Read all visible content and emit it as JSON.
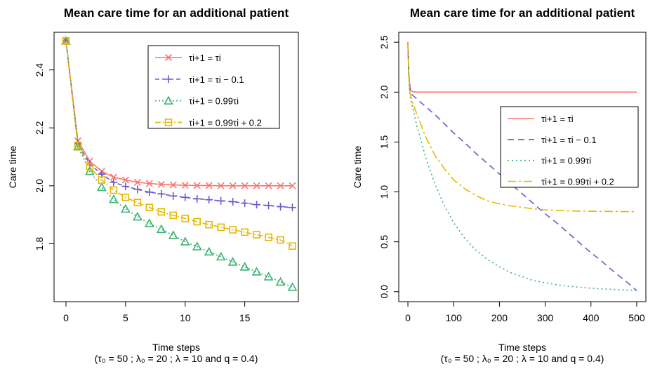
{
  "chart_data": [
    {
      "type": "scatter",
      "title": "Mean care time for an additional patient",
      "xlabel": "Time steps",
      "xlabel_sub": "(τ₀ = 50 ; λ₀ = 20 ; λ = 10 and q = 0.4)",
      "ylabel": "Care time",
      "xlim": [
        -1,
        19.5
      ],
      "ylim": [
        1.6,
        2.53
      ],
      "xticks": [
        0,
        5,
        10,
        15
      ],
      "yticks": [
        1.8,
        2.0,
        2.2,
        2.4
      ],
      "legend_position": "top-right",
      "x": [
        0,
        1,
        2,
        3,
        4,
        5,
        6,
        7,
        8,
        9,
        10,
        11,
        12,
        13,
        14,
        15,
        16,
        17,
        18,
        19
      ],
      "series": [
        {
          "name": "τi+1 = τi",
          "color": "#F8766D",
          "marker": "x",
          "dash": "",
          "values": [
            2.5,
            2.155,
            2.085,
            2.05,
            2.03,
            2.02,
            2.012,
            2.008,
            2.005,
            2.003,
            2.002,
            2.001,
            2.001,
            2.0,
            2.0,
            2.0,
            2.0,
            2.0,
            2.0,
            2.0
          ]
        },
        {
          "name": "τi+1 = τi − 0.1",
          "color": "#6A5ACD",
          "marker": "plus",
          "dash": "6,4",
          "values": [
            2.5,
            2.145,
            2.075,
            2.04,
            2.012,
            1.998,
            1.988,
            1.978,
            1.972,
            1.965,
            1.96,
            1.955,
            1.952,
            1.948,
            1.945,
            1.94,
            1.935,
            1.932,
            1.928,
            1.925
          ]
        },
        {
          "name": "τi+1 = 0.99τi",
          "color": "#3CB371",
          "marker": "triangle",
          "dash": "2,3",
          "values": [
            2.5,
            2.135,
            2.05,
            1.995,
            1.953,
            1.92,
            1.893,
            1.87,
            1.85,
            1.829,
            1.807,
            1.79,
            1.772,
            1.755,
            1.737,
            1.72,
            1.703,
            1.686,
            1.668,
            1.65
          ]
        },
        {
          "name": "τi+1 = 0.99τi + 0.2",
          "color": "#E6B800",
          "marker": "square",
          "dash": "8,3,2,3",
          "values": [
            2.5,
            2.14,
            2.065,
            2.02,
            1.985,
            1.96,
            1.942,
            1.925,
            1.91,
            1.898,
            1.887,
            1.876,
            1.866,
            1.857,
            1.848,
            1.84,
            1.831,
            1.822,
            1.813,
            1.792
          ]
        }
      ]
    },
    {
      "type": "line",
      "title": "Mean care time for an additional patient",
      "xlabel": "Time steps",
      "xlabel_sub": "(τ₀ = 50 ; λ₀ = 20 ; λ = 10 and q = 0.4)",
      "ylabel": "Care time",
      "xlim": [
        -20,
        520
      ],
      "ylim": [
        -0.1,
        2.6
      ],
      "xticks": [
        0,
        100,
        200,
        300,
        400,
        500
      ],
      "yticks": [
        0.0,
        0.5,
        1.0,
        1.5,
        2.0,
        2.5
      ],
      "legend_position": "right",
      "x": [
        0,
        2,
        4,
        6,
        10,
        20,
        40,
        60,
        80,
        100,
        125,
        150,
        175,
        200,
        225,
        250,
        275,
        300,
        325,
        350,
        375,
        400,
        425,
        450,
        475,
        500
      ],
      "series": [
        {
          "name": "τi+1 = τi",
          "color": "#F8766D",
          "dash": "",
          "values": [
            2.5,
            2.2,
            2.08,
            2.02,
            2.005,
            2.0,
            2.0,
            2.0,
            2.0,
            2.0,
            2.0,
            2.0,
            2.0,
            2.0,
            2.0,
            2.0,
            2.0,
            2.0,
            2.0,
            2.0,
            2.0,
            2.0,
            2.0,
            2.0,
            2.0,
            2.0
          ]
        },
        {
          "name": "τi+1 = τi − 0.1",
          "color": "#6A5ACD",
          "dash": "9,6",
          "values": [
            2.5,
            2.18,
            2.05,
            1.99,
            1.97,
            1.93,
            1.85,
            1.77,
            1.68,
            1.59,
            1.49,
            1.38,
            1.28,
            1.18,
            1.08,
            0.98,
            0.88,
            0.78,
            0.69,
            0.59,
            0.49,
            0.39,
            0.3,
            0.2,
            0.11,
            0.01
          ]
        },
        {
          "name": "τi+1 = 0.99τi",
          "color": "#3CB371",
          "dash": "2,4",
          "values": [
            2.5,
            2.15,
            2.0,
            1.93,
            1.85,
            1.65,
            1.33,
            1.07,
            0.86,
            0.69,
            0.53,
            0.41,
            0.32,
            0.25,
            0.19,
            0.15,
            0.11,
            0.09,
            0.07,
            0.055,
            0.045,
            0.035,
            0.028,
            0.022,
            0.017,
            0.013
          ]
        },
        {
          "name": "τi+1 = 0.99τi + 0.2",
          "color": "#E6B800",
          "dash": "12,4,3,4",
          "values": [
            2.5,
            2.16,
            2.02,
            1.96,
            1.9,
            1.77,
            1.54,
            1.36,
            1.23,
            1.12,
            1.03,
            0.96,
            0.91,
            0.88,
            0.86,
            0.845,
            0.83,
            0.82,
            0.815,
            0.81,
            0.808,
            0.806,
            0.805,
            0.804,
            0.803,
            0.802
          ]
        }
      ]
    }
  ]
}
